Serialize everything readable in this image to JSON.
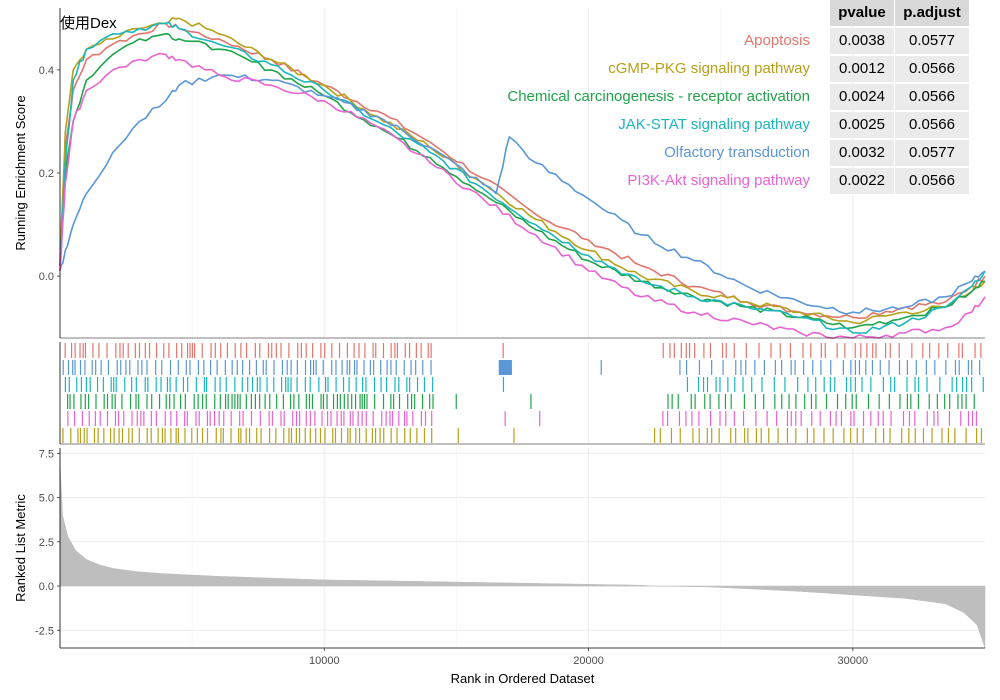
{
  "chart_data": {
    "type": "line",
    "title": "使用Dex",
    "panels": [
      {
        "name": "running-enrichment",
        "ylabel": "Running Enrichment Score",
        "yticks": [
          "0.0",
          "0.2",
          "0.4"
        ],
        "ylim": [
          -0.12,
          0.52
        ]
      },
      {
        "name": "gene-hits",
        "ylabel": ""
      },
      {
        "name": "ranked-list",
        "ylabel": "Ranked List Metric",
        "yticks": [
          "-2.5",
          "0.0",
          "2.5",
          "5.0",
          "7.5"
        ],
        "ylim": [
          -3.5,
          7.8
        ]
      }
    ],
    "xlabel": "Rank in Ordered Dataset",
    "xticks": [
      "10000",
      "20000",
      "30000"
    ],
    "xlim": [
      0,
      35000
    ],
    "grid": true,
    "legend_position": "top-right",
    "table_headers": [
      "pvalue",
      "p.adjust"
    ],
    "series": [
      {
        "name": "Apoptosis",
        "color": "#E2766E",
        "pvalue": "0.0038",
        "padjust": "0.0577",
        "x": [
          0,
          200,
          500,
          1000,
          2000,
          3000,
          4000,
          4500,
          6000,
          8000,
          10000,
          12000,
          14000,
          16000,
          18000,
          20000,
          22000,
          24000,
          26000,
          28000,
          30000,
          32000,
          33500,
          34500,
          35000
        ],
        "y": [
          0.02,
          0.25,
          0.36,
          0.42,
          0.45,
          0.47,
          0.49,
          0.48,
          0.46,
          0.42,
          0.37,
          0.32,
          0.26,
          0.19,
          0.12,
          0.07,
          0.02,
          -0.02,
          -0.05,
          -0.07,
          -0.08,
          -0.06,
          -0.05,
          -0.02,
          0.0
        ]
      },
      {
        "name": "cGMP-PKG signaling pathway",
        "color": "#B5A11A",
        "pvalue": "0.0012",
        "padjust": "0.0566",
        "x": [
          0,
          200,
          500,
          1000,
          2000,
          3000,
          4000,
          4500,
          6000,
          8000,
          10000,
          12000,
          14000,
          16000,
          18000,
          20000,
          22000,
          24000,
          26000,
          28000,
          30000,
          32000,
          33500,
          34500,
          35000
        ],
        "y": [
          0.03,
          0.28,
          0.4,
          0.44,
          0.46,
          0.48,
          0.49,
          0.5,
          0.47,
          0.42,
          0.37,
          0.31,
          0.25,
          0.18,
          0.11,
          0.05,
          0.0,
          -0.03,
          -0.05,
          -0.07,
          -0.09,
          -0.07,
          -0.06,
          -0.03,
          -0.01
        ]
      },
      {
        "name": "Chemical carcinogenesis - receptor activation",
        "color": "#20A44A",
        "pvalue": "0.0024",
        "padjust": "0.0566",
        "x": [
          0,
          200,
          500,
          1000,
          2000,
          3000,
          4000,
          4500,
          6000,
          8000,
          10000,
          12000,
          14000,
          16000,
          18000,
          20000,
          22000,
          24000,
          26000,
          28000,
          30000,
          32000,
          33500,
          34500,
          35000
        ],
        "y": [
          0.02,
          0.2,
          0.3,
          0.38,
          0.43,
          0.46,
          0.47,
          0.46,
          0.44,
          0.4,
          0.35,
          0.29,
          0.23,
          0.16,
          0.09,
          0.03,
          -0.01,
          -0.04,
          -0.06,
          -0.08,
          -0.1,
          -0.08,
          -0.06,
          -0.03,
          -0.01
        ]
      },
      {
        "name": "JAK-STAT signaling pathway",
        "color": "#1BB6BC",
        "pvalue": "0.0025",
        "padjust": "0.0566",
        "x": [
          0,
          200,
          500,
          1000,
          2000,
          3000,
          4000,
          4500,
          6000,
          8000,
          10000,
          12000,
          14000,
          16000,
          18000,
          20000,
          22000,
          24000,
          26000,
          28000,
          30000,
          32000,
          33500,
          34500,
          35000
        ],
        "y": [
          0.02,
          0.22,
          0.38,
          0.44,
          0.47,
          0.48,
          0.49,
          0.48,
          0.45,
          0.41,
          0.36,
          0.3,
          0.24,
          0.17,
          0.1,
          0.04,
          -0.01,
          -0.04,
          -0.06,
          -0.08,
          -0.11,
          -0.09,
          -0.06,
          -0.02,
          0.01
        ]
      },
      {
        "name": "Olfactory transduction",
        "color": "#5B97D6",
        "pvalue": "0.0032",
        "padjust": "0.0577",
        "x": [
          0,
          200,
          500,
          1000,
          2000,
          3000,
          4000,
          4500,
          6000,
          8000,
          10000,
          12000,
          14000,
          16500,
          17000,
          18000,
          20000,
          22000,
          24000,
          26000,
          28000,
          30000,
          32000,
          33500,
          34500,
          35000
        ],
        "y": [
          0.01,
          0.05,
          0.1,
          0.16,
          0.24,
          0.3,
          0.34,
          0.37,
          0.39,
          0.38,
          0.35,
          0.31,
          0.25,
          0.16,
          0.27,
          0.22,
          0.15,
          0.08,
          0.03,
          -0.02,
          -0.05,
          -0.07,
          -0.06,
          -0.04,
          -0.01,
          0.01
        ]
      },
      {
        "name": "PI3K-Akt signaling pathway",
        "color": "#E864D2",
        "pvalue": "0.0022",
        "padjust": "0.0566",
        "x": [
          0,
          200,
          500,
          1000,
          2000,
          3000,
          4000,
          4500,
          6000,
          8000,
          10000,
          12000,
          14000,
          16000,
          18000,
          20000,
          22000,
          24000,
          26000,
          28000,
          30000,
          32000,
          33500,
          34500,
          35000
        ],
        "y": [
          0.01,
          0.18,
          0.3,
          0.36,
          0.4,
          0.42,
          0.43,
          0.42,
          0.39,
          0.37,
          0.34,
          0.29,
          0.22,
          0.15,
          0.08,
          0.01,
          -0.04,
          -0.07,
          -0.09,
          -0.11,
          -0.12,
          -0.11,
          -0.1,
          -0.07,
          -0.04
        ]
      }
    ],
    "ranked_metric": {
      "x": [
        0,
        100,
        300,
        600,
        1000,
        1500,
        2000,
        3000,
        4000,
        6000,
        8000,
        10000,
        14000,
        18000,
        22000,
        22500,
        24500,
        26000,
        28000,
        30000,
        32000,
        33500,
        34200,
        34700,
        35000
      ],
      "y": [
        7.0,
        4.0,
        2.8,
        2.0,
        1.5,
        1.2,
        1.0,
        0.8,
        0.7,
        0.55,
        0.45,
        0.35,
        0.25,
        0.15,
        0.05,
        0.0,
        -0.05,
        -0.15,
        -0.3,
        -0.5,
        -0.7,
        -1.0,
        -1.5,
        -2.2,
        -3.5
      ]
    }
  }
}
